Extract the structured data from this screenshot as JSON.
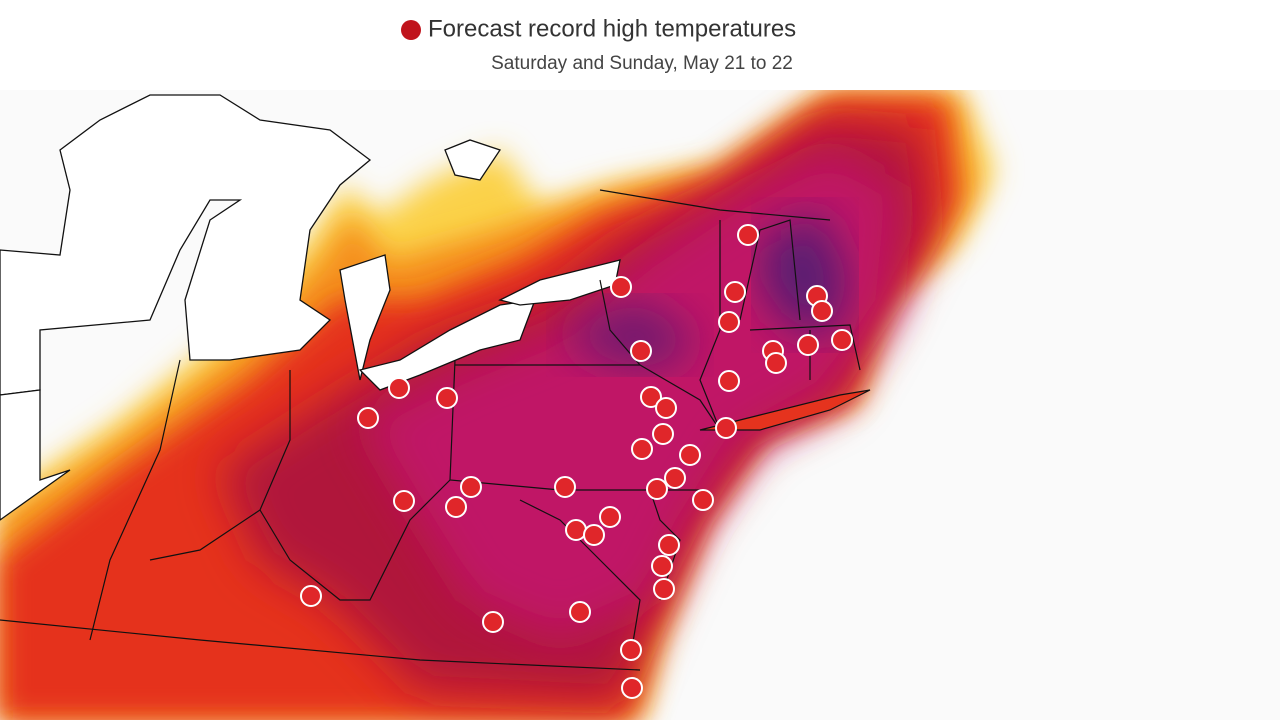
{
  "legend": {
    "label": "Forecast record high temperatures"
  },
  "subtitle": "Saturday and Sunday, May 21 to 22"
}
